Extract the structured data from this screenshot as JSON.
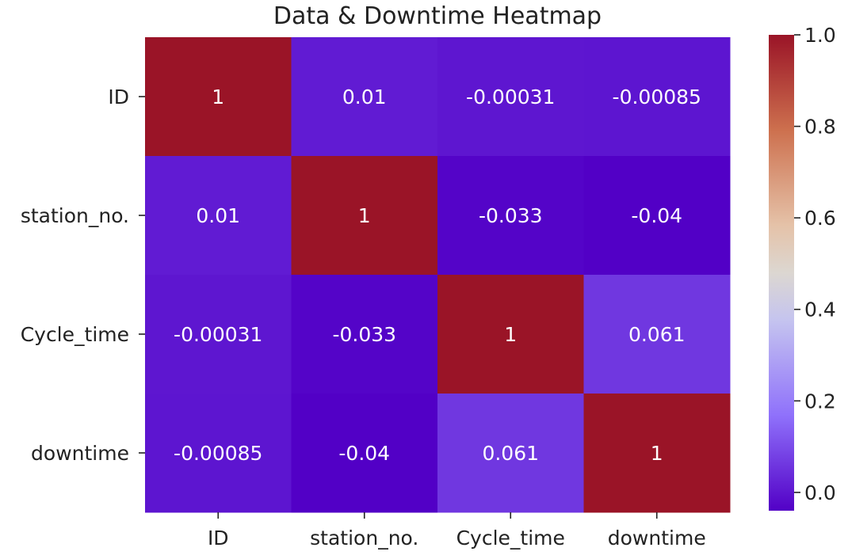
{
  "chart_data": {
    "type": "heatmap",
    "title": "Data & Downtime Heatmap",
    "xlabel": "",
    "ylabel": "",
    "x_labels": [
      "ID",
      "station_no.",
      "Cycle_time",
      "downtime"
    ],
    "y_labels": [
      "ID",
      "station_no.",
      "Cycle_time",
      "downtime"
    ],
    "values": [
      [
        1,
        0.01,
        -0.00031,
        -0.00085
      ],
      [
        0.01,
        1,
        -0.033,
        -0.04
      ],
      [
        -0.00031,
        -0.033,
        1,
        0.061
      ],
      [
        -0.00085,
        -0.04,
        0.061,
        1
      ]
    ],
    "cell_labels": [
      [
        "1",
        "0.01",
        "-0.00031",
        "-0.00085"
      ],
      [
        "0.01",
        "1",
        "-0.033",
        "-0.04"
      ],
      [
        "-0.00031",
        "-0.033",
        "1",
        "0.061"
      ],
      [
        "-0.00085",
        "-0.04",
        "0.061",
        "1"
      ]
    ],
    "colormap": "coolwarm-like (purple to dark red)",
    "colorbar": {
      "vmin": -0.04,
      "vmax": 1.0,
      "ticks": [
        0.0,
        0.2,
        0.4,
        0.6,
        0.8,
        1.0
      ],
      "tick_labels": [
        "0.0",
        "0.2",
        "0.4",
        "0.6",
        "0.8",
        "1.0"
      ]
    },
    "grid": false
  },
  "colors": {
    "color_stops": [
      {
        "v": 0.0,
        "c": "#5200c6"
      },
      {
        "v": 0.2,
        "c": "#8f71fb"
      },
      {
        "v": 0.4,
        "c": "#c5c4ef"
      },
      {
        "v": 0.5,
        "c": "#dcd7d1"
      },
      {
        "v": 0.6,
        "c": "#e5c2a8"
      },
      {
        "v": 0.8,
        "c": "#cd704e"
      },
      {
        "v": 1.0,
        "c": "#9a1427"
      }
    ]
  }
}
